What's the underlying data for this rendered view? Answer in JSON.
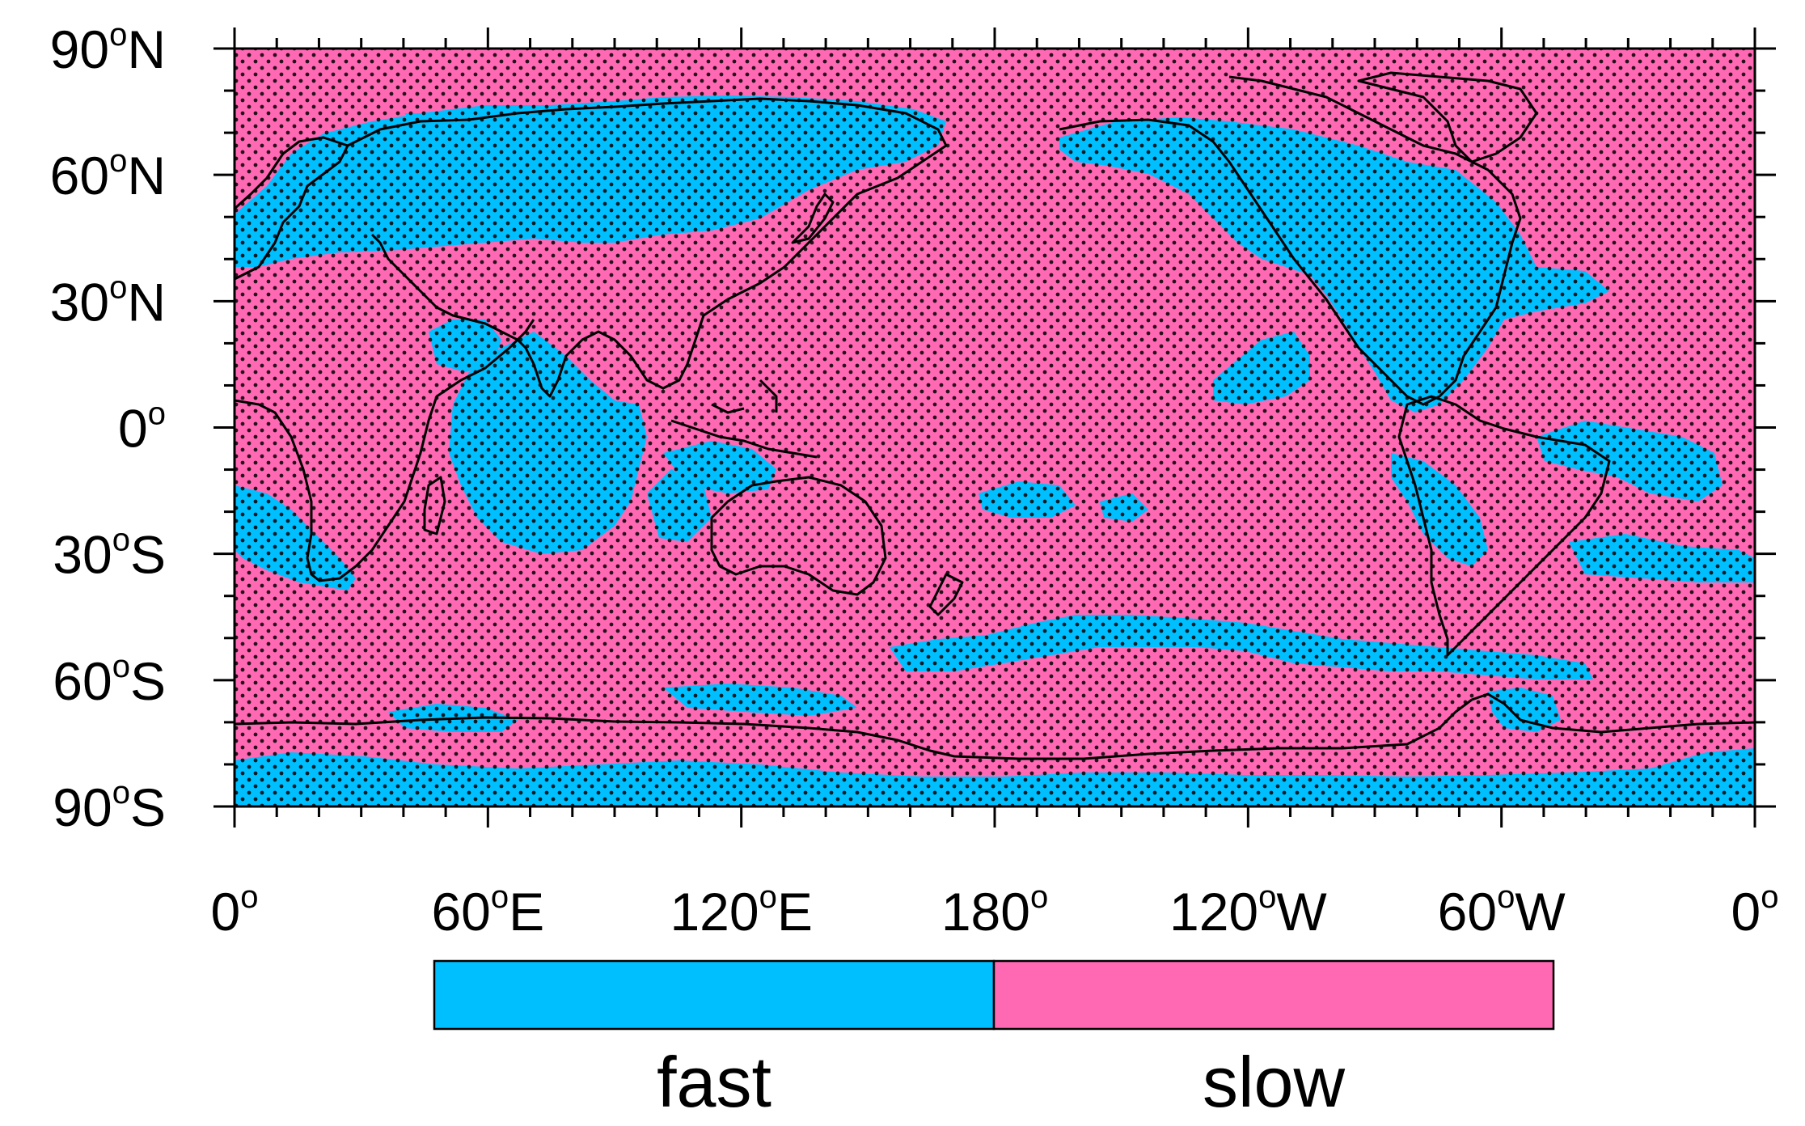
{
  "map": {
    "y_ticks": [
      {
        "lat": 90,
        "num": "90",
        "deg": "o",
        "hemi": "N"
      },
      {
        "lat": 60,
        "num": "60",
        "deg": "o",
        "hemi": "N"
      },
      {
        "lat": 30,
        "num": "30",
        "deg": "o",
        "hemi": "N"
      },
      {
        "lat": 0,
        "num": "0",
        "deg": "o",
        "hemi": ""
      },
      {
        "lat": -30,
        "num": "30",
        "deg": "o",
        "hemi": "S"
      },
      {
        "lat": -60,
        "num": "60",
        "deg": "o",
        "hemi": "S"
      },
      {
        "lat": -90,
        "num": "90",
        "deg": "o",
        "hemi": "S"
      }
    ],
    "x_ticks": [
      {
        "lon": 0,
        "num": "0",
        "deg": "o",
        "hemi": ""
      },
      {
        "lon": 60,
        "num": "60",
        "deg": "o",
        "hemi": "E"
      },
      {
        "lon": 120,
        "num": "120",
        "deg": "o",
        "hemi": "E"
      },
      {
        "lon": 180,
        "num": "180",
        "deg": "o",
        "hemi": ""
      },
      {
        "lon": 240,
        "num": "120",
        "deg": "o",
        "hemi": "W"
      },
      {
        "lon": 300,
        "num": "60",
        "deg": "o",
        "hemi": "W"
      },
      {
        "lon": 360,
        "num": "0",
        "deg": "o",
        "hemi": ""
      }
    ],
    "lon_range": [
      0,
      360
    ],
    "lat_range": [
      -90,
      90
    ],
    "minor_step_deg": 10,
    "stippling": "dots over regions marked significant",
    "legend": {
      "items": [
        {
          "label": "fast",
          "color": "#00bfff"
        },
        {
          "label": "slow",
          "color": "#ff69b4"
        }
      ]
    }
  }
}
